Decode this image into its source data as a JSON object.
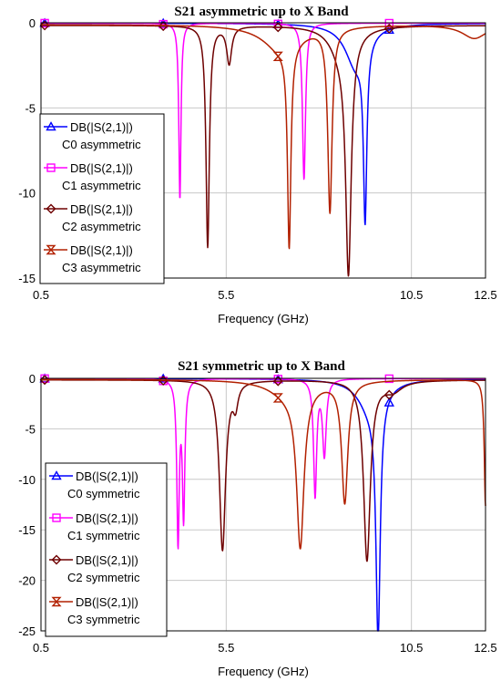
{
  "chart_data": [
    {
      "type": "line",
      "title": "S21 asymmetric up to X Band",
      "xlabel": "Frequency (GHz)",
      "ylabel": "",
      "xlim": [
        0.5,
        12.5
      ],
      "ylim": [
        -15,
        0
      ],
      "xticks": [
        0.5,
        5.5,
        10.5,
        12.5
      ],
      "yticks": [
        0,
        -5,
        -10,
        -15
      ],
      "grid": true,
      "legend_position": "left",
      "series": [
        {
          "name": "DB(|S(2,1)|)",
          "name2": "C0 asymmetric",
          "color": "#0000ff",
          "marker": "triangle",
          "floor": -0.02,
          "notches": [
            {
              "f": 9.25,
              "depth": 10.2,
              "w": 0.055
            },
            {
              "f": 9.0,
              "depth": 2.5,
              "w": 0.35
            }
          ],
          "marker_x": [
            0.6,
            3.8,
            6.9,
            9.9
          ]
        },
        {
          "name": "DB(|S(2,1)|)",
          "name2": "C1 asymmetric",
          "color": "#ff00ff",
          "marker": "square",
          "floor": -0.02,
          "notches": [
            {
              "f": 4.25,
              "depth": 10.4,
              "w": 0.035
            },
            {
              "f": 7.6,
              "depth": 9.2,
              "w": 0.05
            }
          ],
          "marker_x": [
            0.6,
            3.8,
            6.9,
            9.9
          ]
        },
        {
          "name": "DB(|S(2,1)|)",
          "name2": "C2 asymmetric",
          "color": "#6e0000",
          "marker": "diamond",
          "floor": -0.15,
          "notches": [
            {
              "f": 5.0,
              "depth": 13.0,
              "w": 0.055
            },
            {
              "f": 5.58,
              "depth": 2.2,
              "w": 0.08
            },
            {
              "f": 8.8,
              "depth": 13.6,
              "w": 0.09
            },
            {
              "f": 8.6,
              "depth": 1.5,
              "w": 0.35
            }
          ],
          "marker_x": [
            0.6,
            3.8,
            6.9,
            9.9
          ]
        },
        {
          "name": "DB(|S(2,1)|)",
          "name2": "C3 asymmetric",
          "color": "#b22000",
          "marker": "hourglass",
          "floor": -0.1,
          "notches": [
            {
              "f": 7.2,
              "depth": 11.8,
              "w": 0.055
            },
            {
              "f": 8.3,
              "depth": 10.8,
              "w": 0.07
            },
            {
              "f": 12.2,
              "depth": 0.8,
              "w": 0.4
            },
            {
              "f": 7.0,
              "depth": 1.5,
              "w": 0.6
            }
          ],
          "marker_x": [
            6.9
          ]
        }
      ]
    },
    {
      "type": "line",
      "title": "S21 symmetric up to X Band",
      "xlabel": "Frequency (GHz)",
      "ylabel": "",
      "xlim": [
        0.5,
        12.5
      ],
      "ylim": [
        -25,
        0
      ],
      "xticks": [
        0.5,
        5.5,
        10.5,
        12.5
      ],
      "yticks": [
        0,
        -5,
        -10,
        -15,
        -20,
        -25
      ],
      "grid": true,
      "legend_position": "bottom-left",
      "series": [
        {
          "name": "DB(|S(2,1)|)",
          "name2": "C0 symmetric",
          "color": "#0000ff",
          "marker": "triangle",
          "floor": -0.02,
          "notches": [
            {
              "f": 9.6,
              "depth": 23.5,
              "w": 0.07
            },
            {
              "f": 9.4,
              "depth": 3.0,
              "w": 0.4
            }
          ],
          "marker_x": [
            0.6,
            3.8,
            6.9,
            9.9
          ]
        },
        {
          "name": "DB(|S(2,1)|)",
          "name2": "C1 symmetric",
          "color": "#ff00ff",
          "marker": "square",
          "floor": -0.02,
          "notches": [
            {
              "f": 4.2,
              "depth": 16.0,
              "w": 0.04
            },
            {
              "f": 4.35,
              "depth": 13.5,
              "w": 0.04
            },
            {
              "f": 7.9,
              "depth": 11.5,
              "w": 0.05
            },
            {
              "f": 8.15,
              "depth": 7.5,
              "w": 0.06
            }
          ],
          "marker_x": [
            0.6,
            3.8,
            6.9,
            9.9
          ]
        },
        {
          "name": "DB(|S(2,1)|)",
          "name2": "C2 symmetric",
          "color": "#6e0000",
          "marker": "diamond",
          "floor": -0.15,
          "notches": [
            {
              "f": 5.4,
              "depth": 16.8,
              "w": 0.1
            },
            {
              "f": 5.75,
              "depth": 2.2,
              "w": 0.08
            },
            {
              "f": 9.3,
              "depth": 17.8,
              "w": 0.11
            },
            {
              "f": 10.0,
              "depth": 1.0,
              "w": 0.3
            }
          ],
          "marker_x": [
            0.6,
            3.8,
            6.9,
            9.9
          ]
        },
        {
          "name": "DB(|S(2,1)|)",
          "name2": "C3 symmetric",
          "color": "#b22000",
          "marker": "hourglass",
          "floor": -0.1,
          "notches": [
            {
              "f": 7.5,
              "depth": 15.5,
              "w": 0.12
            },
            {
              "f": 8.7,
              "depth": 12.0,
              "w": 0.1
            },
            {
              "f": 12.5,
              "depth": 12.5,
              "w": 0.04
            },
            {
              "f": 7.2,
              "depth": 1.5,
              "w": 0.6
            }
          ],
          "marker_x": [
            6.9
          ]
        }
      ]
    }
  ]
}
